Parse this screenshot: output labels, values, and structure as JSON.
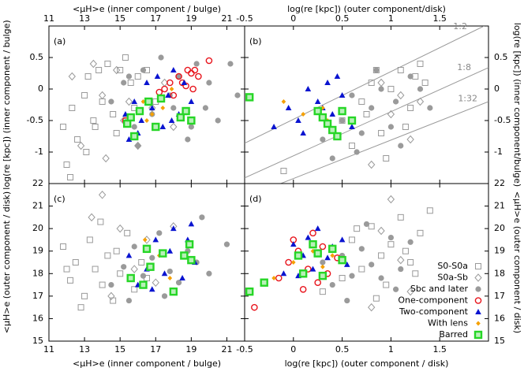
{
  "chart_data": [
    {
      "type": "scatter",
      "panel_label": "(a)",
      "x_label": "<μH>e (inner component / bulge)",
      "y_label": "log(re [kpc]) (inner component / bulge)",
      "xaxis_side": "top",
      "yaxis_side": "left",
      "xlim": [
        11,
        22
      ],
      "ylim": [
        -1.5,
        1.0
      ],
      "xticks": [
        11,
        13,
        15,
        17,
        19,
        21
      ],
      "yticks": [
        -1,
        -0.5,
        0,
        0.5
      ],
      "series": [
        {
          "marker": "square",
          "color": "#9a9a9a",
          "x": [
            11.8,
            12.0,
            12.3,
            12.6,
            13.0,
            13.2,
            13.5,
            13.8,
            14.0,
            14.3,
            14.6,
            15.0,
            15.3,
            15.6,
            16.0,
            16.5,
            17.0,
            12.2,
            13.1,
            14.8,
            15.8,
            13.6
          ],
          "values": [
            -0.6,
            -1.2,
            -0.3,
            -0.8,
            -0.1,
            0.2,
            -0.5,
            0.3,
            -0.2,
            0.4,
            -0.4,
            0.3,
            0.5,
            0.1,
            0.2,
            0.3,
            -0.2,
            -1.4,
            -1.0,
            -0.7,
            -0.3,
            -0.6
          ]
        },
        {
          "marker": "diamond",
          "color": "#9a9a9a",
          "x": [
            12.3,
            13.5,
            14.0,
            14.8,
            15.2,
            16.0,
            16.8,
            17.5,
            15.5,
            14.2,
            18.0,
            12.8
          ],
          "values": [
            0.2,
            0.4,
            -0.1,
            0.3,
            -0.5,
            -0.9,
            -0.3,
            0.1,
            -0.2,
            -1.1,
            -0.6,
            -0.9
          ]
        },
        {
          "marker": "dot",
          "color": "#9a9a9a",
          "x": [
            14.5,
            15.2,
            15.8,
            16.3,
            16.8,
            17.3,
            17.8,
            18.3,
            18.8,
            19.3,
            19.8,
            20.5,
            21.2,
            21.6,
            16.0,
            17.0,
            18.0,
            19.0,
            20.0,
            15.5
          ],
          "values": [
            -0.2,
            0.1,
            -0.6,
            0.3,
            -0.4,
            0.5,
            -0.1,
            0.2,
            -0.8,
            0.4,
            -0.3,
            -0.5,
            0.4,
            -0.1,
            -0.9,
            -0.6,
            -0.3,
            -0.6,
            0.1,
            0.2
          ]
        },
        {
          "marker": "ring",
          "color": "#e8141c",
          "x": [
            17.5,
            17.8,
            18.0,
            18.3,
            18.5,
            18.8,
            19.0,
            19.2,
            19.4,
            19.1,
            18.7,
            20.0,
            15.3,
            17.2
          ],
          "values": [
            0.0,
            0.1,
            -0.1,
            0.2,
            0.1,
            0.3,
            0.25,
            0.3,
            0.2,
            0.0,
            0.05,
            0.45,
            -0.5,
            -0.05
          ]
        },
        {
          "marker": "triangle",
          "color": "#0a14d0",
          "x": [
            15.3,
            15.8,
            16.2,
            16.5,
            16.8,
            17.1,
            17.4,
            17.7,
            18.0,
            18.3,
            18.6,
            19.0,
            16.0,
            17.9,
            15.5
          ],
          "values": [
            -0.4,
            -0.2,
            -0.5,
            0.1,
            -0.3,
            0.2,
            -0.6,
            -0.1,
            0.3,
            -0.4,
            0.1,
            -0.2,
            -0.7,
            -0.5,
            -0.8
          ]
        },
        {
          "marker": "lens",
          "color": "#f5a000",
          "x": [
            16.3,
            16.8,
            17.4,
            17.9,
            16.5
          ],
          "values": [
            -0.2,
            -0.4,
            -0.3,
            0.0,
            -0.5
          ]
        },
        {
          "marker": "bar",
          "color": "#26d626",
          "x": [
            15.4,
            15.8,
            16.1,
            16.6,
            17.0,
            17.3,
            18.4,
            18.7,
            19.0,
            15.6
          ],
          "values": [
            -0.55,
            -0.75,
            -0.35,
            -0.2,
            -0.6,
            -0.15,
            -0.45,
            -0.35,
            -0.5,
            -0.45
          ]
        }
      ]
    },
    {
      "type": "scatter",
      "panel_label": "(b)",
      "x_label": "log(re [kpc]) (outer component/disk)",
      "y_label": "log(re [kpc]) (inner component/bulge)",
      "xaxis_side": "top",
      "yaxis_side": "right",
      "xlim": [
        -0.5,
        2.0
      ],
      "ylim": [
        -1.5,
        1.0
      ],
      "xticks": [
        -0.5,
        0,
        0.5,
        1,
        1.5
      ],
      "yticks": [
        -1,
        -0.5,
        0,
        0.5
      ],
      "ref_lines": [
        {
          "label": "1:2",
          "x": [
            -0.5,
            1.955
          ],
          "y": [
            -0.86,
            1.0
          ]
        },
        {
          "label": "1:8",
          "x": [
            -0.5,
            2.0
          ],
          "y": [
            -1.41,
            0.34
          ]
        },
        {
          "label": "1:32",
          "x": [
            -0.13,
            2.0
          ],
          "y": [
            -1.5,
            -0.2
          ]
        }
      ],
      "series": [
        {
          "marker": "square",
          "color": "#9a9a9a",
          "x": [
            0.5,
            0.7,
            0.8,
            0.9,
            1.0,
            1.1,
            1.2,
            1.3,
            1.35,
            0.6,
            0.95,
            1.15,
            1.25,
            0.85,
            0.75,
            -0.1
          ],
          "values": [
            -0.5,
            -0.2,
            0.1,
            -0.7,
            0.0,
            0.3,
            -0.3,
            0.4,
            0.1,
            -0.9,
            -1.1,
            -0.6,
            0.2,
            0.3,
            -0.4,
            -1.3
          ]
        },
        {
          "marker": "diamond",
          "color": "#9a9a9a",
          "x": [
            1.0,
            1.2,
            1.3,
            0.8,
            0.9,
            1.1
          ],
          "values": [
            -0.4,
            -0.8,
            -0.2,
            -1.2,
            0.1,
            -0.1
          ]
        },
        {
          "marker": "dot",
          "color": "#9a9a9a",
          "x": [
            0.3,
            0.5,
            0.6,
            0.7,
            0.8,
            0.9,
            1.0,
            1.1,
            1.2,
            1.4,
            0.4,
            0.65,
            0.85,
            1.05,
            1.3
          ],
          "values": [
            -0.8,
            -0.5,
            -0.1,
            -0.7,
            -0.3,
            0.0,
            -0.6,
            -0.9,
            0.2,
            -0.3,
            -1.1,
            -1.0,
            0.3,
            -0.2,
            0.0
          ]
        },
        {
          "marker": "triangle",
          "color": "#0a14d0",
          "x": [
            -0.2,
            -0.05,
            0.05,
            0.15,
            0.25,
            0.35,
            0.4,
            0.5,
            0.6,
            0.3,
            0.1,
            0.45
          ],
          "values": [
            -0.6,
            -0.3,
            -0.5,
            0.0,
            -0.2,
            0.1,
            -0.4,
            -0.1,
            -0.6,
            -0.3,
            -0.7,
            0.2
          ]
        },
        {
          "marker": "lens",
          "color": "#f5a000",
          "x": [
            -0.1,
            0.1,
            0.3,
            0.35
          ],
          "values": [
            -0.2,
            -0.4,
            -0.3,
            -0.5
          ]
        },
        {
          "marker": "bar",
          "color": "#26d626",
          "x": [
            -0.45,
            0.25,
            0.3,
            0.35,
            0.4,
            0.5,
            0.6,
            0.45
          ],
          "values": [
            -0.13,
            -0.35,
            -0.45,
            -0.55,
            -0.65,
            -0.35,
            -0.5,
            -0.75
          ]
        }
      ]
    },
    {
      "type": "scatter",
      "panel_label": "(c)",
      "x_label": "<μH>e (inner component / bulge)",
      "y_label": "<μH>e (outer component / disk)",
      "xaxis_side": "bottom",
      "yaxis_side": "left",
      "xlim": [
        11,
        22
      ],
      "ylim": [
        15,
        22
      ],
      "xticks": [
        11,
        13,
        15,
        17,
        19,
        21
      ],
      "yticks": [
        15,
        16,
        17,
        18,
        19,
        20,
        21,
        22
      ],
      "series": [
        {
          "marker": "square",
          "color": "#9a9a9a",
          "x": [
            11.8,
            12.2,
            12.5,
            13.0,
            13.3,
            13.6,
            14.0,
            14.3,
            14.6,
            15.0,
            15.4,
            15.8,
            16.2,
            12.8,
            13.9,
            14.8,
            16.5,
            12.0
          ],
          "values": [
            19.2,
            17.7,
            18.5,
            17.0,
            19.5,
            18.2,
            17.5,
            18.8,
            16.8,
            18.0,
            19.8,
            17.3,
            18.5,
            16.5,
            20.3,
            19.0,
            17.8,
            18.2
          ]
        },
        {
          "marker": "diamond",
          "color": "#9a9a9a",
          "x": [
            13.4,
            14.0,
            15.0,
            15.8,
            16.5,
            17.0,
            18.0,
            14.5
          ],
          "values": [
            20.5,
            21.5,
            20.0,
            18.2,
            19.5,
            17.6,
            20.1,
            17.0
          ]
        },
        {
          "marker": "dot",
          "color": "#9a9a9a",
          "x": [
            14.5,
            15.2,
            15.8,
            16.3,
            16.8,
            17.2,
            17.8,
            18.3,
            18.8,
            19.3,
            20.0,
            21.0,
            15.5,
            17.5,
            19.6
          ],
          "values": [
            17.5,
            18.3,
            19.2,
            17.9,
            18.7,
            19.8,
            18.1,
            17.6,
            19.0,
            18.5,
            18.0,
            19.3,
            16.8,
            17.0,
            20.5
          ]
        },
        {
          "marker": "triangle",
          "color": "#0a14d0",
          "x": [
            15.5,
            16.0,
            16.5,
            17.0,
            17.5,
            18.0,
            18.5,
            19.0,
            16.8,
            17.8,
            18.8,
            19.2
          ],
          "values": [
            18.8,
            17.5,
            18.2,
            19.5,
            18.0,
            20.0,
            17.8,
            20.2,
            17.3,
            19.0,
            19.5,
            18.5
          ]
        },
        {
          "marker": "lens",
          "color": "#f5a000",
          "x": [
            16.4,
            17.2,
            17.8,
            16.8
          ],
          "values": [
            19.5,
            18.8,
            17.8,
            18.3
          ]
        },
        {
          "marker": "bar",
          "color": "#26d626",
          "x": [
            15.6,
            16.5,
            16.7,
            17.4,
            18.0,
            18.6,
            18.9,
            19.0,
            16.3
          ],
          "values": [
            17.8,
            19.1,
            18.3,
            18.9,
            17.2,
            18.8,
            19.3,
            18.6,
            17.5
          ]
        }
      ]
    },
    {
      "type": "scatter",
      "panel_label": "(d)",
      "x_label": "log(re [kpc]) (outer component / disk)",
      "y_label": "<μH>e (outer component / disk)",
      "xaxis_side": "bottom",
      "yaxis_side": "right",
      "legend": "lower right",
      "xlim": [
        -0.5,
        2.0
      ],
      "ylim": [
        15,
        22
      ],
      "xticks": [
        -0.5,
        0,
        0.5,
        1,
        1.5
      ],
      "yticks": [
        15,
        16,
        17,
        18,
        19,
        20,
        21,
        22
      ],
      "series": [
        {
          "name": "S0-S0a",
          "marker": "square",
          "color": "#9a9a9a",
          "x": [
            0.5,
            0.6,
            0.7,
            0.8,
            0.9,
            1.0,
            1.1,
            1.2,
            1.3,
            1.4,
            0.3,
            0.95,
            1.15,
            1.25,
            0.85,
            0.65
          ],
          "values": [
            17.8,
            19.5,
            18.2,
            20.1,
            18.8,
            19.3,
            20.5,
            18.5,
            19.8,
            20.8,
            17.2,
            17.5,
            19.0,
            18.0,
            16.9,
            20.0
          ]
        },
        {
          "name": "S0a-Sb",
          "marker": "diamond",
          "color": "#9a9a9a",
          "x": [
            0.8,
            1.0,
            1.2,
            0.9,
            1.1
          ],
          "values": [
            16.5,
            21.3,
            17.2,
            19.9,
            18.6
          ]
        },
        {
          "name": "Sbc and later",
          "marker": "dot",
          "color": "#9a9a9a",
          "x": [
            0.4,
            0.5,
            0.6,
            0.7,
            0.8,
            0.9,
            1.0,
            1.1,
            1.2,
            0.3,
            0.55,
            0.75,
            1.05
          ],
          "values": [
            17.5,
            18.8,
            17.9,
            19.1,
            18.4,
            17.8,
            19.6,
            18.2,
            19.4,
            18.5,
            16.8,
            20.2,
            17.3
          ]
        },
        {
          "name": "One-component",
          "marker": "ring",
          "color": "#e8141c",
          "x": [
            -0.4,
            -0.15,
            -0.05,
            0.0,
            0.05,
            0.1,
            0.15,
            0.2,
            0.25,
            0.3,
            0.35,
            0.45
          ],
          "values": [
            16.5,
            17.8,
            18.5,
            19.5,
            19.0,
            17.3,
            18.2,
            19.8,
            17.6,
            19.2,
            18.0,
            18.7
          ]
        },
        {
          "name": "Two-component",
          "marker": "triangle",
          "color": "#0a14d0",
          "x": [
            -0.1,
            0.0,
            0.05,
            0.1,
            0.15,
            0.2,
            0.25,
            0.35,
            0.4,
            0.5,
            0.55
          ],
          "values": [
            18.0,
            19.3,
            17.9,
            18.8,
            19.6,
            18.2,
            20.0,
            18.7,
            19.2,
            19.5,
            18.4
          ]
        },
        {
          "name": "With lens",
          "marker": "lens",
          "color": "#f5a000",
          "x": [
            -0.2,
            0.0,
            0.1,
            0.2,
            0.3,
            0.4
          ],
          "values": [
            17.8,
            18.5,
            18.0,
            19.0,
            18.3,
            18.8
          ]
        },
        {
          "name": "Barred",
          "marker": "bar",
          "color": "#26d626",
          "x": [
            -0.45,
            -0.3,
            0.05,
            0.2,
            0.25,
            0.3,
            0.4,
            0.5,
            0.1
          ],
          "values": [
            17.2,
            17.6,
            18.8,
            19.3,
            18.9,
            17.9,
            19.1,
            18.6,
            18.0
          ]
        }
      ]
    }
  ]
}
